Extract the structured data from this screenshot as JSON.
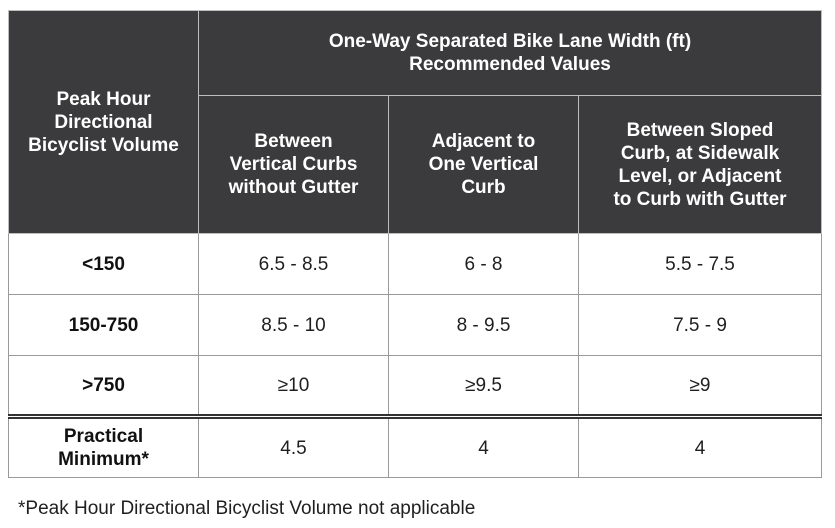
{
  "header": {
    "row_label_lines": [
      "Peak Hour",
      "Directional",
      "Bicyclist Volume"
    ],
    "group_title_lines": [
      "One-Way Separated Bike Lane Width (ft)",
      "Recommended Values"
    ],
    "columns": [
      {
        "lines": [
          "Between",
          "Vertical Curbs",
          "without Gutter"
        ]
      },
      {
        "lines": [
          "Adjacent to",
          "One Vertical",
          "Curb"
        ]
      },
      {
        "lines": [
          "Between Sloped",
          "Curb, at Sidewalk",
          "Level, or Adjacent",
          "to Curb with Gutter"
        ]
      }
    ]
  },
  "rows": [
    {
      "label": "<150",
      "values": [
        "6.5 - 8.5",
        "6 - 8",
        "5.5 - 7.5"
      ]
    },
    {
      "label": "150-750",
      "values": [
        "8.5 - 10",
        "8 - 9.5",
        "7.5 - 9"
      ]
    },
    {
      "label": ">750",
      "values": [
        "≥10",
        "≥9.5",
        "≥9"
      ]
    }
  ],
  "minimum_row": {
    "label_lines": [
      "Practical",
      "Minimum*"
    ],
    "values": [
      "4.5",
      "4",
      "4"
    ]
  },
  "footnote": "*Peak Hour Directional Bicyclist Volume not applicable",
  "colors": {
    "header_bg": "#3b3b3d",
    "header_text": "#ffffff",
    "body_text": "#1f1f1f",
    "grid_line": "#9a9a9a"
  }
}
